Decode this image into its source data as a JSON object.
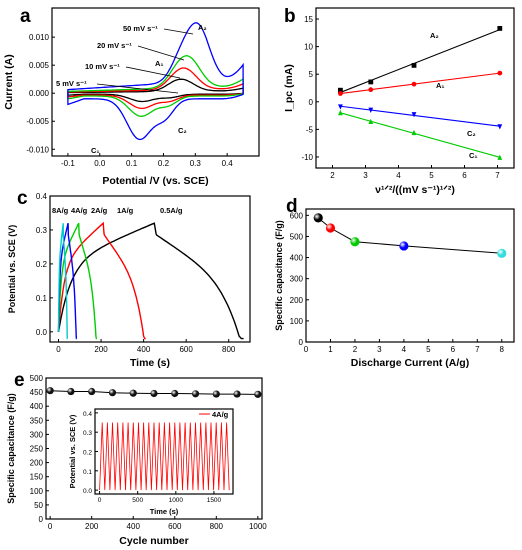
{
  "chart_data": [
    {
      "panel": "a",
      "type": "line",
      "xlabel": "Potential /V (vs. SCE)",
      "ylabel": "Current (A)",
      "xlim": [
        -0.15,
        0.5
      ],
      "ylim": [
        -0.0112,
        0.0152
      ],
      "xticks": [
        "-0.1",
        "0.0",
        "0.1",
        "0.2",
        "0.3",
        "0.4"
      ],
      "yticks": [
        "-0.010",
        "-0.005",
        "0.000",
        "0.005",
        "0.010"
      ],
      "series": [
        {
          "name": "5 mV s⁻¹",
          "color": "#000000",
          "scale": 0.18
        },
        {
          "name": "10 mV s⁻¹",
          "color": "#ff0000",
          "scale": 0.33
        },
        {
          "name": "20 mV s⁻¹",
          "color": "#00cc00",
          "scale": 0.5
        },
        {
          "name": "50 mV s⁻¹",
          "color": "#0000ff",
          "scale": 1.0
        }
      ],
      "annotations": [
        "50 mV s⁻¹",
        "20 mV s⁻¹",
        "10 mV s⁻¹",
        "5 mV s⁻¹",
        "A₂",
        "A₁",
        "C₂",
        "C₁"
      ]
    },
    {
      "panel": "b",
      "type": "scatter",
      "xlabel": "ν¹ᐟ²/((mV s⁻¹)¹ᐟ²)",
      "ylabel": "I_pc (mA)",
      "xlim": [
        1.5,
        7.5
      ],
      "ylim": [
        -12,
        17
      ],
      "xticks": [
        "2",
        "3",
        "4",
        "5",
        "6",
        "7"
      ],
      "yticks": [
        "-10",
        "-5",
        "0",
        "5",
        "10",
        "15"
      ],
      "x": [
        2.24,
        3.16,
        4.47,
        7.07
      ],
      "series": [
        {
          "name": "A₂",
          "color": "#000000",
          "marker": "square",
          "values": [
            2.1,
            3.6,
            6.6,
            13.3
          ]
        },
        {
          "name": "A₁",
          "color": "#ff0000",
          "marker": "circle",
          "values": [
            1.5,
            2.2,
            3.2,
            5.2
          ]
        },
        {
          "name": "C₂",
          "color": "#0000ff",
          "marker": "triangle-down",
          "values": [
            -0.9,
            -1.5,
            -2.3,
            -4.5
          ]
        },
        {
          "name": "C₁",
          "color": "#00cc00",
          "marker": "triangle-up",
          "values": [
            -2.0,
            -3.6,
            -5.6,
            -10.1
          ]
        }
      ]
    },
    {
      "panel": "c",
      "type": "line",
      "xlabel": "Time (s)",
      "ylabel": "Potential vs. SCE (V)",
      "xlim": [
        -40,
        900
      ],
      "ylim": [
        -0.03,
        0.4
      ],
      "xticks": [
        "0",
        "200",
        "400",
        "600",
        "800"
      ],
      "yticks": [
        "0.0",
        "0.1",
        "0.2",
        "0.3",
        "0.4"
      ],
      "series": [
        {
          "name": "0.5A/g",
          "color": "#000000",
          "charge_s": 450,
          "discharge_end_s": 870
        },
        {
          "name": "1A/g",
          "color": "#ff0000",
          "charge_s": 210,
          "discharge_end_s": 410
        },
        {
          "name": "2A/g",
          "color": "#00cc00",
          "charge_s": 95,
          "discharge_end_s": 180
        },
        {
          "name": "4A/g",
          "color": "#0000ff",
          "charge_s": 45,
          "discharge_end_s": 85
        },
        {
          "name": "8A/g",
          "color": "#00cccc",
          "charge_s": 22,
          "discharge_end_s": 42
        }
      ]
    },
    {
      "panel": "d",
      "type": "scatter",
      "xlabel": "Discharge Current (A/g)",
      "ylabel": "Specific capacitance (F/g)",
      "xlim": [
        0,
        8.5
      ],
      "ylim": [
        0,
        630
      ],
      "xticks": [
        "0",
        "1",
        "2",
        "3",
        "4",
        "5",
        "6",
        "7",
        "8"
      ],
      "yticks": [
        "0",
        "100",
        "200",
        "300",
        "400",
        "500",
        "600"
      ],
      "x": [
        0.5,
        1,
        2,
        4,
        8
      ],
      "values": [
        588,
        540,
        475,
        455,
        420
      ],
      "colors": [
        "#000000",
        "#ff0000",
        "#00cc00",
        "#0000ff",
        "#33dddd"
      ]
    },
    {
      "panel": "e",
      "type": "scatter",
      "xlabel": "Cycle number",
      "ylabel": "Specific capacitance (F/g)",
      "xlim": [
        -20,
        1020
      ],
      "ylim": [
        0,
        500
      ],
      "xticks": [
        "0",
        "200",
        "400",
        "600",
        "800",
        "1000"
      ],
      "yticks": [
        "0",
        "50",
        "100",
        "150",
        "200",
        "250",
        "300",
        "350",
        "400",
        "450",
        "500"
      ],
      "x": [
        0,
        100,
        200,
        300,
        400,
        500,
        600,
        700,
        800,
        900,
        1000
      ],
      "values": [
        455,
        452,
        452,
        448,
        446,
        445,
        445,
        444,
        443,
        443,
        442
      ],
      "inset": {
        "type": "line",
        "legend": "4A/g",
        "xlabel": "Time (s)",
        "ylabel": "Potential vs. SCE (V)",
        "xlim": [
          -60,
          1750
        ],
        "ylim": [
          -0.02,
          0.42
        ],
        "xticks": [
          "0",
          "500",
          "1000",
          "1500"
        ],
        "yticks": [
          "0.0",
          "0.1",
          "0.2",
          "0.3",
          "0.4"
        ],
        "cycles": 25,
        "period_s": 68,
        "color": "#ff0000"
      }
    }
  ]
}
